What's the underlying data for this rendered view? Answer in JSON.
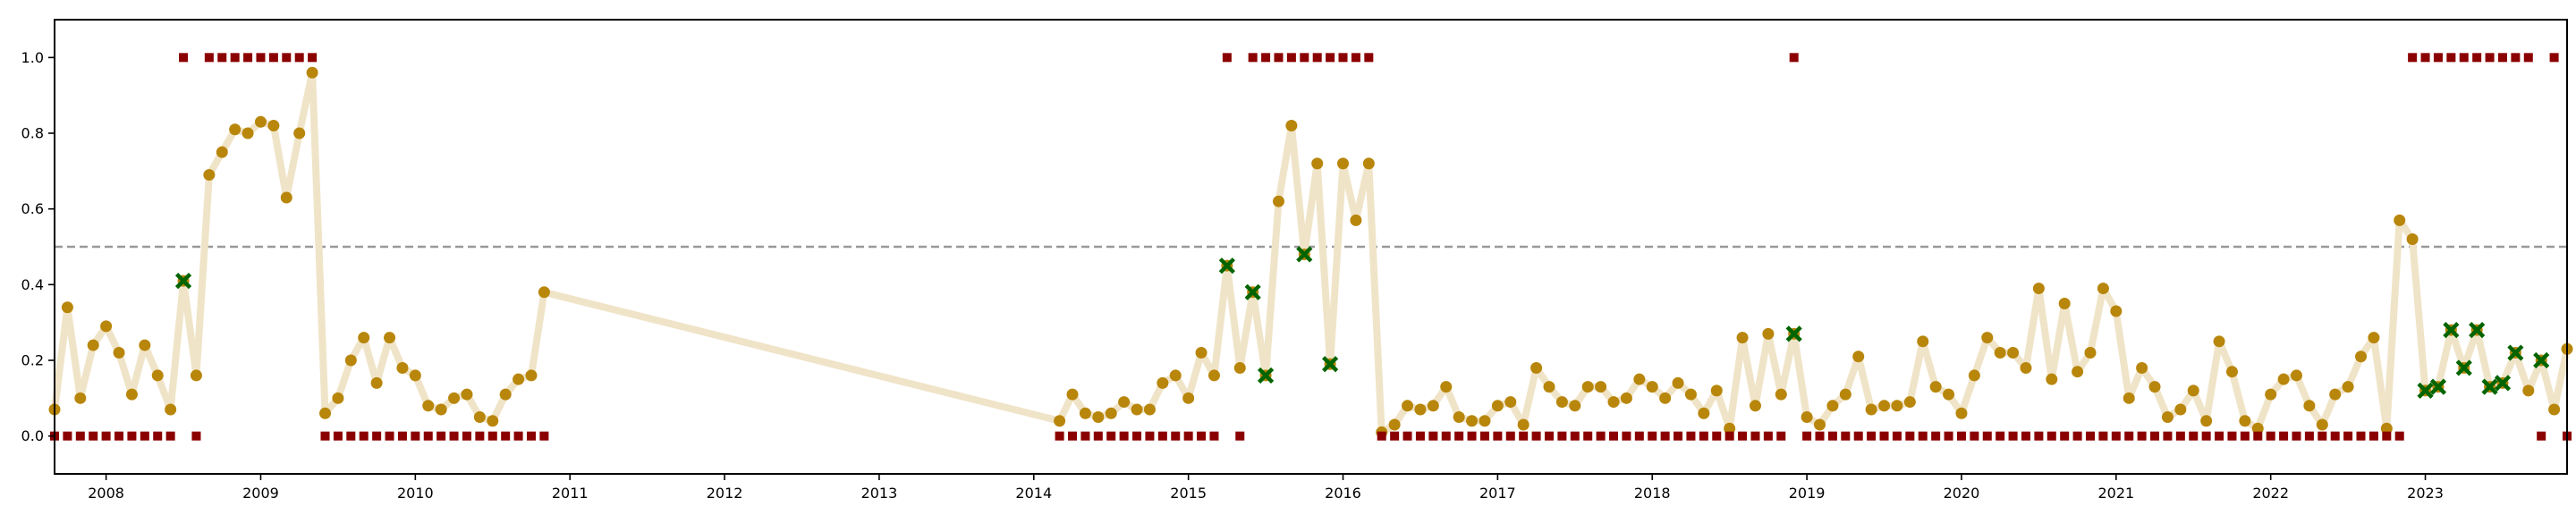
{
  "chart_data": {
    "type": "scatter",
    "title": "",
    "xlabel": "",
    "ylabel": "",
    "x_range": [
      "2007-09-01",
      "2023-12-01"
    ],
    "ylim": [
      -0.1,
      1.1
    ],
    "grid": false,
    "legend": "none",
    "x_tick_labels": [
      "2008",
      "2009",
      "2010",
      "2011",
      "2012",
      "2013",
      "2014",
      "2015",
      "2016",
      "2017",
      "2018",
      "2019",
      "2020",
      "2021",
      "2022",
      "2023"
    ],
    "y_tick_labels": [
      "0.0",
      "0.2",
      "0.4",
      "0.6",
      "0.8",
      "1.0"
    ],
    "threshold": {
      "y": 0.5,
      "style": "dashed",
      "color": "#999999"
    },
    "colors": {
      "probability_line": "#f0e4c8",
      "probability_point": "#b8860b",
      "true_label": "#8b0000",
      "flagged": "#006400"
    },
    "series": [
      {
        "marker": "circle",
        "x": [
          "2007-09",
          "2007-10",
          "2007-11",
          "2007-12",
          "2008-01",
          "2008-02",
          "2008-03",
          "2008-04",
          "2008-05",
          "2008-06",
          "2008-07",
          "2008-08",
          "2008-09",
          "2008-10",
          "2008-11",
          "2008-12",
          "2009-01",
          "2009-02",
          "2009-03",
          "2009-04",
          "2009-05",
          "2009-06",
          "2009-07",
          "2009-08",
          "2009-09",
          "2009-10",
          "2009-11",
          "2009-12",
          "2010-01",
          "2010-02",
          "2010-03",
          "2010-04",
          "2010-05",
          "2010-06",
          "2010-07",
          "2010-08",
          "2010-09",
          "2010-10",
          "2010-11",
          "2014-03",
          "2014-04",
          "2014-05",
          "2014-06",
          "2014-07",
          "2014-08",
          "2014-09",
          "2014-10",
          "2014-11",
          "2014-12",
          "2015-01",
          "2015-02",
          "2015-03",
          "2015-04",
          "2015-05",
          "2015-06",
          "2015-07",
          "2015-08",
          "2015-09",
          "2015-10",
          "2015-11",
          "2015-12",
          "2016-01",
          "2016-02",
          "2016-03",
          "2016-04",
          "2016-05",
          "2016-06",
          "2016-07",
          "2016-08",
          "2016-09",
          "2016-10",
          "2016-11",
          "2016-12",
          "2017-01",
          "2017-02",
          "2017-03",
          "2017-04",
          "2017-05",
          "2017-06",
          "2017-07",
          "2017-08",
          "2017-09",
          "2017-10",
          "2017-11",
          "2017-12",
          "2018-01",
          "2018-02",
          "2018-03",
          "2018-04",
          "2018-05",
          "2018-06",
          "2018-07",
          "2018-08",
          "2018-09",
          "2018-10",
          "2018-11",
          "2018-12",
          "2019-01",
          "2019-02",
          "2019-03",
          "2019-04",
          "2019-05",
          "2019-06",
          "2019-07",
          "2019-08",
          "2019-09",
          "2019-10",
          "2019-11",
          "2019-12",
          "2020-01",
          "2020-02",
          "2020-03",
          "2020-04",
          "2020-05",
          "2020-06",
          "2020-07",
          "2020-08",
          "2020-09",
          "2020-10",
          "2020-11",
          "2020-12",
          "2021-01",
          "2021-02",
          "2021-03",
          "2021-04",
          "2021-05",
          "2021-06",
          "2021-07",
          "2021-08",
          "2021-09",
          "2021-10",
          "2021-11",
          "2021-12",
          "2022-01",
          "2022-02",
          "2022-03",
          "2022-04",
          "2022-05",
          "2022-06",
          "2022-07",
          "2022-08",
          "2022-09",
          "2022-10",
          "2022-11",
          "2022-12",
          "2023-01",
          "2023-02",
          "2023-03",
          "2023-04",
          "2023-05",
          "2023-06",
          "2023-07",
          "2023-08",
          "2023-09",
          "2023-10",
          "2023-11",
          "2023-12"
        ],
        "y": [
          0.07,
          0.34,
          0.1,
          0.24,
          0.29,
          0.22,
          0.11,
          0.24,
          0.16,
          0.07,
          0.41,
          0.16,
          0.69,
          0.75,
          0.81,
          0.8,
          0.83,
          0.82,
          0.63,
          0.8,
          0.96,
          0.06,
          0.1,
          0.2,
          0.26,
          0.14,
          0.26,
          0.18,
          0.16,
          0.08,
          0.07,
          0.1,
          0.11,
          0.05,
          0.04,
          0.11,
          0.15,
          0.16,
          0.38,
          0.04,
          0.11,
          0.06,
          0.05,
          0.06,
          0.09,
          0.07,
          0.07,
          0.14,
          0.16,
          0.1,
          0.22,
          0.16,
          0.45,
          0.18,
          0.38,
          0.16,
          0.62,
          0.82,
          0.48,
          0.72,
          0.19,
          0.72,
          0.57,
          0.72,
          0.01,
          0.03,
          0.08,
          0.07,
          0.08,
          0.13,
          0.05,
          0.04,
          0.04,
          0.08,
          0.09,
          0.03,
          0.18,
          0.13,
          0.09,
          0.08,
          0.13,
          0.13,
          0.09,
          0.1,
          0.15,
          0.13,
          0.1,
          0.14,
          0.11,
          0.06,
          0.12,
          0.02,
          0.26,
          0.08,
          0.27,
          0.11,
          0.27,
          0.05,
          0.03,
          0.08,
          0.11,
          0.21,
          0.07,
          0.08,
          0.08,
          0.09,
          0.25,
          0.13,
          0.11,
          0.06,
          0.16,
          0.26,
          0.22,
          0.22,
          0.18,
          0.39,
          0.15,
          0.35,
          0.17,
          0.22,
          0.39,
          0.33,
          0.1,
          0.18,
          0.13,
          0.05,
          0.07,
          0.12,
          0.04,
          0.25,
          0.17,
          0.04,
          0.02,
          0.11,
          0.15,
          0.16,
          0.08,
          0.03,
          0.11,
          0.13,
          0.21,
          0.26,
          0.02,
          0.57,
          0.52,
          0.12,
          0.13,
          0.28,
          0.18,
          0.28,
          0.13,
          0.14,
          0.22,
          0.12,
          0.2,
          0.07,
          0.23
        ]
      },
      {
        "marker": "x",
        "x": [
          "2008-07",
          "2015-04",
          "2015-06",
          "2015-07",
          "2015-10",
          "2015-12",
          "2018-12",
          "2023-01",
          "2023-02",
          "2023-03",
          "2023-04",
          "2023-05",
          "2023-06",
          "2023-07",
          "2023-08",
          "2023-10"
        ],
        "y": [
          0.41,
          0.45,
          0.38,
          0.16,
          0.48,
          0.19,
          0.27,
          0.12,
          0.13,
          0.28,
          0.18,
          0.28,
          0.13,
          0.14,
          0.22,
          0.2
        ]
      },
      {
        "marker": "square",
        "x": [
          "2007-09",
          "2007-10",
          "2007-11",
          "2007-12",
          "2008-01",
          "2008-02",
          "2008-03",
          "2008-04",
          "2008-05",
          "2008-06",
          "2008-07",
          "2008-08",
          "2008-09",
          "2008-10",
          "2008-11",
          "2008-12",
          "2009-01",
          "2009-02",
          "2009-03",
          "2009-04",
          "2009-05",
          "2009-06",
          "2009-07",
          "2009-08",
          "2009-09",
          "2009-10",
          "2009-11",
          "2009-12",
          "2010-01",
          "2010-02",
          "2010-03",
          "2010-04",
          "2010-05",
          "2010-06",
          "2010-07",
          "2010-08",
          "2010-09",
          "2010-10",
          "2010-11",
          "2014-03",
          "2014-04",
          "2014-05",
          "2014-06",
          "2014-07",
          "2014-08",
          "2014-09",
          "2014-10",
          "2014-11",
          "2014-12",
          "2015-01",
          "2015-02",
          "2015-03",
          "2015-04",
          "2015-05",
          "2015-06",
          "2015-07",
          "2015-08",
          "2015-09",
          "2015-10",
          "2015-11",
          "2015-12",
          "2016-01",
          "2016-02",
          "2016-03",
          "2016-04",
          "2016-05",
          "2016-06",
          "2016-07",
          "2016-08",
          "2016-09",
          "2016-10",
          "2016-11",
          "2016-12",
          "2017-01",
          "2017-02",
          "2017-03",
          "2017-04",
          "2017-05",
          "2017-06",
          "2017-07",
          "2017-08",
          "2017-09",
          "2017-10",
          "2017-11",
          "2017-12",
          "2018-01",
          "2018-02",
          "2018-03",
          "2018-04",
          "2018-05",
          "2018-06",
          "2018-07",
          "2018-08",
          "2018-09",
          "2018-10",
          "2018-11",
          "2018-12",
          "2019-01",
          "2019-02",
          "2019-03",
          "2019-04",
          "2019-05",
          "2019-06",
          "2019-07",
          "2019-08",
          "2019-09",
          "2019-10",
          "2019-11",
          "2019-12",
          "2020-01",
          "2020-02",
          "2020-03",
          "2020-04",
          "2020-05",
          "2020-06",
          "2020-07",
          "2020-08",
          "2020-09",
          "2020-10",
          "2020-11",
          "2020-12",
          "2021-01",
          "2021-02",
          "2021-03",
          "2021-04",
          "2021-05",
          "2021-06",
          "2021-07",
          "2021-08",
          "2021-09",
          "2021-10",
          "2021-11",
          "2021-12",
          "2022-01",
          "2022-02",
          "2022-03",
          "2022-04",
          "2022-05",
          "2022-06",
          "2022-07",
          "2022-08",
          "2022-09",
          "2022-10",
          "2022-11",
          "2022-12",
          "2023-01",
          "2023-02",
          "2023-03",
          "2023-04",
          "2023-05",
          "2023-06",
          "2023-07",
          "2023-08",
          "2023-09",
          "2023-10",
          "2023-11",
          "2023-12"
        ],
        "y": [
          0,
          0,
          0,
          0,
          0,
          0,
          0,
          0,
          0,
          0,
          1,
          0,
          1,
          1,
          1,
          1,
          1,
          1,
          1,
          1,
          1,
          0,
          0,
          0,
          0,
          0,
          0,
          0,
          0,
          0,
          0,
          0,
          0,
          0,
          0,
          0,
          0,
          0,
          0,
          0,
          0,
          0,
          0,
          0,
          0,
          0,
          0,
          0,
          0,
          0,
          0,
          0,
          1,
          0,
          1,
          1,
          1,
          1,
          1,
          1,
          1,
          1,
          1,
          1,
          0,
          0,
          0,
          0,
          0,
          0,
          0,
          0,
          0,
          0,
          0,
          0,
          0,
          0,
          0,
          0,
          0,
          0,
          0,
          0,
          0,
          0,
          0,
          0,
          0,
          0,
          0,
          0,
          0,
          0,
          0,
          0,
          1,
          0,
          0,
          0,
          0,
          0,
          0,
          0,
          0,
          0,
          0,
          0,
          0,
          0,
          0,
          0,
          0,
          0,
          0,
          0,
          0,
          0,
          0,
          0,
          0,
          0,
          0,
          0,
          0,
          0,
          0,
          0,
          0,
          0,
          0,
          0,
          0,
          0,
          0,
          0,
          0,
          0,
          0,
          0,
          0,
          0,
          0,
          0,
          1,
          1,
          1,
          1,
          1,
          1,
          1,
          1,
          1,
          1,
          0,
          1,
          0
        ]
      }
    ]
  }
}
